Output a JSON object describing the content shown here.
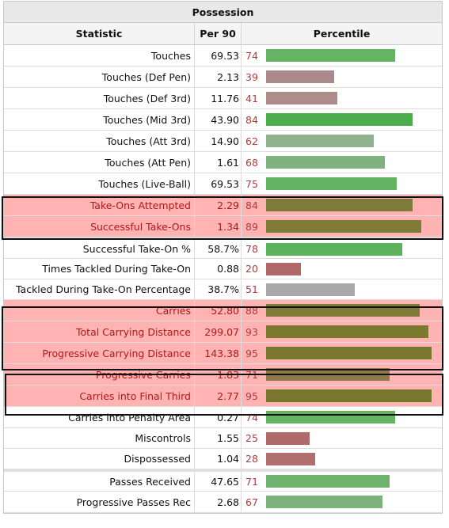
{
  "table": {
    "title": "Possession",
    "headers": {
      "statistic": "Statistic",
      "per90": "Per 90",
      "percentile": "Percentile"
    },
    "rows": [
      {
        "label": "Touches",
        "per90": "69.53",
        "percentile": "74",
        "bar_pct": 74,
        "color": "#64b464",
        "highlight": false
      },
      {
        "label": "Touches (Def Pen)",
        "per90": "2.13",
        "percentile": "39",
        "bar_pct": 39,
        "color": "#a98989",
        "highlight": false
      },
      {
        "label": "Touches (Def 3rd)",
        "per90": "11.76",
        "percentile": "41",
        "bar_pct": 41,
        "color": "#ad8c8c",
        "highlight": false
      },
      {
        "label": "Touches (Mid 3rd)",
        "per90": "43.90",
        "percentile": "84",
        "bar_pct": 84,
        "color": "#4cad4c",
        "highlight": false
      },
      {
        "label": "Touches (Att 3rd)",
        "per90": "14.90",
        "percentile": "62",
        "bar_pct": 62,
        "color": "#8fb38f",
        "highlight": false
      },
      {
        "label": "Touches (Att Pen)",
        "per90": "1.61",
        "percentile": "68",
        "bar_pct": 68,
        "color": "#7eb17e",
        "highlight": false
      },
      {
        "label": "Touches (Live-Ball)",
        "per90": "69.53",
        "percentile": "75",
        "bar_pct": 75,
        "color": "#62b362",
        "highlight": false
      },
      {
        "label": "Take-Ons Attempted",
        "per90": "2.29",
        "percentile": "84",
        "bar_pct": 84,
        "color": "#7e7a3a",
        "highlight": true
      },
      {
        "label": "Successful Take-Ons",
        "per90": "1.34",
        "percentile": "89",
        "bar_pct": 89,
        "color": "#807b37",
        "highlight": true
      },
      {
        "label": "Successful Take-On %",
        "per90": "58.7%",
        "percentile": "78",
        "bar_pct": 78,
        "color": "#5db35d",
        "highlight": false,
        "sep": true
      },
      {
        "label": "Times Tackled During Take-On",
        "per90": "0.88",
        "percentile": "20",
        "bar_pct": 20,
        "color": "#b06868",
        "highlight": false
      },
      {
        "label": "Tackled During Take-On Percentage",
        "per90": "38.7%",
        "percentile": "51",
        "bar_pct": 51,
        "color": "#a8a8a8",
        "highlight": false
      },
      {
        "label": "Carries",
        "per90": "52.80",
        "percentile": "88",
        "bar_pct": 88,
        "color": "#7f7b36",
        "highlight": true
      },
      {
        "label": "Total Carrying Distance",
        "per90": "299.07",
        "percentile": "93",
        "bar_pct": 93,
        "color": "#7b7830",
        "highlight": true
      },
      {
        "label": "Progressive Carrying Distance",
        "per90": "143.38",
        "percentile": "95",
        "bar_pct": 95,
        "color": "#79772d",
        "highlight": true
      },
      {
        "label": "Progressive Carries",
        "per90": "1.83",
        "percentile": "71",
        "bar_pct": 71,
        "color": "#8c7a4c",
        "highlight": true
      },
      {
        "label": "Carries into Final Third",
        "per90": "2.77",
        "percentile": "95",
        "bar_pct": 95,
        "color": "#79772d",
        "highlight": true
      },
      {
        "label": "Carries into Penalty Area",
        "per90": "0.27",
        "percentile": "74",
        "bar_pct": 74,
        "color": "#64b464",
        "highlight": false
      },
      {
        "label": "Miscontrols",
        "per90": "1.55",
        "percentile": "25",
        "bar_pct": 25,
        "color": "#b06a6a",
        "highlight": false
      },
      {
        "label": "Dispossessed",
        "per90": "1.04",
        "percentile": "28",
        "bar_pct": 28,
        "color": "#b07070",
        "highlight": false
      },
      {
        "label": "Passes Received",
        "per90": "47.65",
        "percentile": "71",
        "bar_pct": 71,
        "color": "#6db36d",
        "highlight": false,
        "sep": true
      },
      {
        "label": "Progressive Passes Rec",
        "per90": "2.68",
        "percentile": "67",
        "bar_pct": 67,
        "color": "#7cb27c",
        "highlight": false
      }
    ]
  }
}
